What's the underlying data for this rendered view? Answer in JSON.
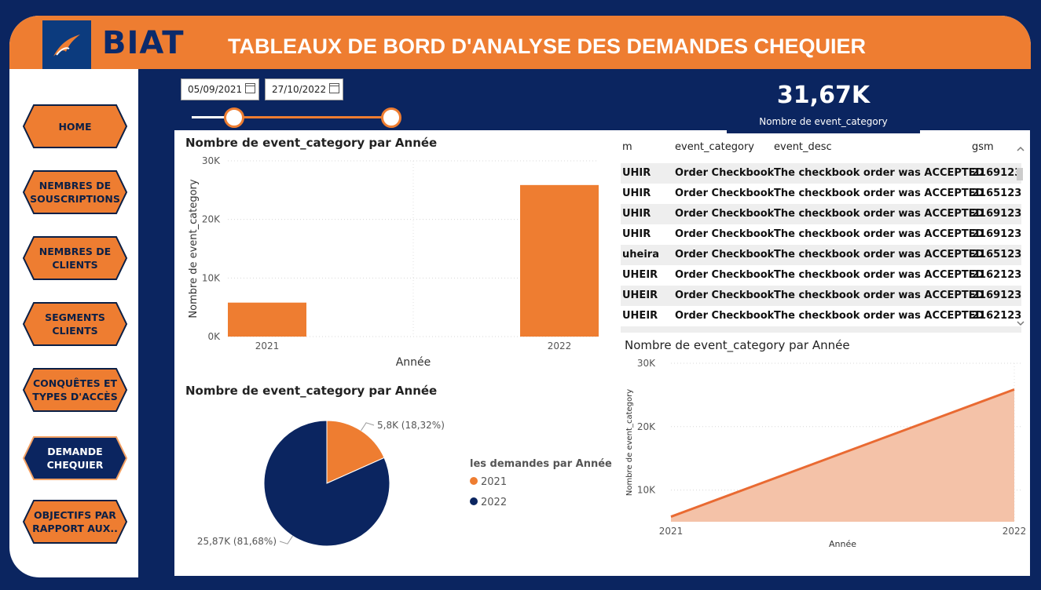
{
  "brand": {
    "name": "BIAT",
    "logo_icon": "biat-wing-icon",
    "accent": "#ee7d31",
    "navy": "#0b2560"
  },
  "title": "TABLEAUX DE BORD D'ANALYSE DES DEMANDES CHEQUIER",
  "nav": [
    {
      "line1": "HOME",
      "line2": "",
      "active": false
    },
    {
      "line1": "NEMBRES DE",
      "line2": "SOUSCRIPTIONS",
      "active": false
    },
    {
      "line1": "NEMBRES DE",
      "line2": "CLIENTS",
      "active": false
    },
    {
      "line1": "SEGMENTS",
      "line2": "CLIENTS",
      "active": false
    },
    {
      "line1": "CONQUÊTES ET",
      "line2": "TYPES D'ACCÈS",
      "active": false
    },
    {
      "line1": "DEMANDE",
      "line2": "CHEQUIER",
      "active": true
    },
    {
      "line1": "OBJECTIFS PAR",
      "line2": "RAPPORT AUX..",
      "active": false
    }
  ],
  "filters": {
    "start_date": "05/09/2021",
    "end_date": "27/10/2022"
  },
  "kpi": {
    "value": "31,67K",
    "label": "Nombre de event_category"
  },
  "table": {
    "columns": [
      "m",
      "event_category",
      "event_desc",
      "gsm"
    ],
    "rows": [
      [
        "UHIR",
        "Order Checkbook",
        "The checkbook order was ACCEPTED",
        "2169123"
      ],
      [
        "UHIR",
        "Order Checkbook",
        "The checkbook order was ACCEPTED",
        "2165123"
      ],
      [
        "UHIR",
        "Order Checkbook",
        "The checkbook order was ACCEPTED",
        "2169123"
      ],
      [
        "UHIR",
        "Order Checkbook",
        "The checkbook order was ACCEPTED",
        "2169123"
      ],
      [
        "uheira",
        "Order Checkbook",
        "The checkbook order was ACCEPTED",
        "2165123"
      ],
      [
        "UHEIR",
        "Order Checkbook",
        "The checkbook order was ACCEPTED",
        "2162123"
      ],
      [
        "UHEIR",
        "Order Checkbook",
        "The checkbook order was ACCEPTED",
        "2169123"
      ],
      [
        "UHEIR",
        "Order Checkbook",
        "The checkbook order was ACCEPTED",
        "2162123"
      ]
    ]
  },
  "chart_data": [
    {
      "type": "bar",
      "title": "Nombre de event_category par Année",
      "xlabel": "Année",
      "ylabel": "Nombre de event_category",
      "categories": [
        "2021",
        "2022"
      ],
      "values": [
        5800,
        25870
      ],
      "ylim": [
        0,
        30000
      ],
      "yticks": [
        "0K",
        "10K",
        "20K",
        "30K"
      ],
      "color": "#ee7d31"
    },
    {
      "type": "pie",
      "title": "Nombre de event_category par Année",
      "legend_title": "les demandes par Année",
      "labels": [
        "2021",
        "2022"
      ],
      "values": [
        5800,
        25870
      ],
      "data_labels": [
        "5,8K (18,32%)",
        "25,87K (81,68%)"
      ],
      "colors": [
        "#ee7d31",
        "#0b2560"
      ]
    },
    {
      "type": "area",
      "title": "Nombre de event_category par Année",
      "xlabel": "Année",
      "ylabel": "Nombre de event_category",
      "x": [
        "2021",
        "2022"
      ],
      "values": [
        5800,
        25870
      ],
      "ylim": [
        5000,
        30000
      ],
      "yticks": [
        "10K",
        "20K",
        "30K"
      ],
      "line_color": "#e96a32",
      "fill_color": "#f4c2a8"
    }
  ]
}
